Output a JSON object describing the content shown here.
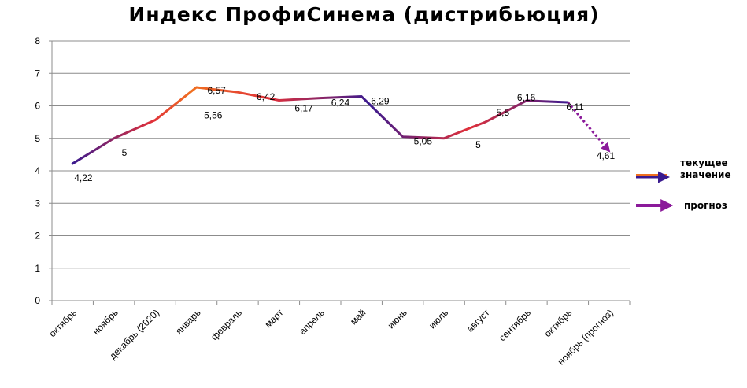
{
  "chart_data": {
    "type": "line",
    "title": "Индекс ПрофиСинема (дистрибьюция)",
    "categories": [
      "октябрь",
      "ноябрь",
      "декабрь (2020)",
      "январь",
      "февраль",
      "март",
      "апрель",
      "май",
      "июнь",
      "июль",
      "август",
      "сентябрь",
      "октябрь",
      "ноябрь (прогноз)"
    ],
    "series": [
      {
        "name": "текущее значение",
        "values": [
          4.22,
          5,
          5.56,
          6.57,
          6.42,
          6.17,
          6.24,
          6.29,
          5.05,
          5,
          5.5,
          6.16,
          6.11,
          null
        ]
      },
      {
        "name": "прогноз",
        "values": [
          null,
          null,
          null,
          null,
          null,
          null,
          null,
          null,
          null,
          null,
          null,
          null,
          6.11,
          4.61
        ]
      }
    ],
    "data_labels": [
      "4,22",
      "5",
      "5,56",
      "6,57",
      "6,42",
      "6,17",
      "6,24",
      "6,29",
      "5,05",
      "5",
      "5,5",
      "6,16",
      "6,11",
      "4,61"
    ],
    "y_ticks": [
      "0",
      "1",
      "2",
      "3",
      "4",
      "5",
      "6",
      "7",
      "8"
    ],
    "ylim": [
      0,
      8
    ],
    "grid": true,
    "legend_position": "right",
    "colors": {
      "gradient_start": "#3a1a8f",
      "gradient_mid": "#e0303a",
      "gradient_hot": "#f07020",
      "forecast": "#8b1a9a"
    }
  }
}
